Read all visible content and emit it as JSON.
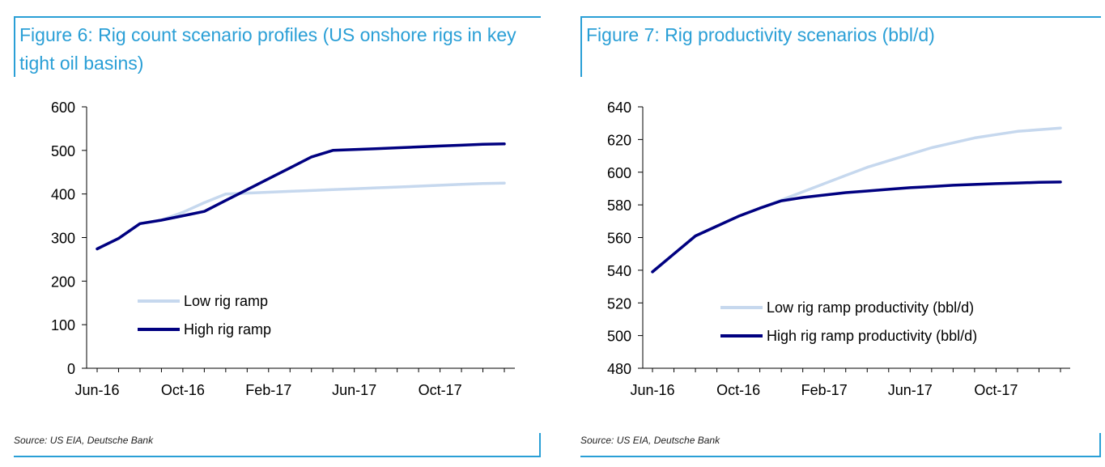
{
  "chart_data": [
    {
      "type": "line",
      "title": "Figure 6: Rig count scenario profiles (US onshore rigs in key tight oil basins)",
      "source": "Source: US EIA, Deutsche Bank",
      "xlabel": "",
      "ylabel": "",
      "ylim": [
        0,
        600
      ],
      "yticks": [
        "0",
        "100",
        "200",
        "300",
        "400",
        "500",
        "600"
      ],
      "x_tick_labels": [
        "Jun-16",
        "Oct-16",
        "Feb-17",
        "Jun-17",
        "Oct-17"
      ],
      "x_tick_months": [
        0,
        4,
        8,
        12,
        16
      ],
      "x_range": [
        0,
        19
      ],
      "legend": "lower-left",
      "series": [
        {
          "name": "Low rig ramp",
          "color": "#c6d8ee",
          "x": [
            0,
            1,
            2,
            3,
            4,
            5,
            6,
            7,
            8,
            9,
            10,
            11,
            12,
            13,
            14,
            15,
            16,
            17,
            18,
            19
          ],
          "values": [
            274,
            298,
            332,
            340,
            358,
            380,
            400,
            402,
            404,
            406,
            408,
            410,
            412,
            414,
            416,
            418,
            420,
            422,
            424,
            425
          ]
        },
        {
          "name": "High rig ramp",
          "color": "#000080",
          "x": [
            0,
            1,
            2,
            3,
            4,
            5,
            6,
            7,
            8,
            9,
            10,
            11,
            12,
            13,
            14,
            15,
            16,
            17,
            18,
            19
          ],
          "values": [
            274,
            298,
            332,
            340,
            350,
            360,
            385,
            410,
            435,
            460,
            485,
            500,
            502,
            504,
            506,
            508,
            510,
            512,
            514,
            515
          ]
        }
      ]
    },
    {
      "type": "line",
      "title": "Figure 7: Rig productivity scenarios (bbl/d)",
      "source": "Source: US EIA, Deutsche Bank",
      "xlabel": "",
      "ylabel": "",
      "ylim": [
        480,
        640
      ],
      "yticks": [
        "480",
        "500",
        "520",
        "540",
        "560",
        "580",
        "600",
        "620",
        "640"
      ],
      "x_tick_labels": [
        "Jun-16",
        "Oct-16",
        "Feb-17",
        "Jun-17",
        "Oct-17"
      ],
      "x_tick_months": [
        0,
        4,
        8,
        12,
        16
      ],
      "x_range": [
        0,
        19
      ],
      "legend": "lower-right",
      "series": [
        {
          "name": "Low rig ramp productivity (bbl/d)",
          "color": "#c6d8ee",
          "x": [
            0,
            1,
            2,
            3,
            4,
            5,
            6,
            7,
            8,
            9,
            10,
            11,
            12,
            13,
            14,
            15,
            16,
            17,
            18,
            19
          ],
          "values": [
            539,
            550,
            561,
            567,
            573,
            578,
            583,
            588,
            593,
            598,
            603,
            607,
            611,
            615,
            618,
            621,
            623,
            625,
            626,
            627
          ]
        },
        {
          "name": "High rig ramp productivity (bbl/d)",
          "color": "#000080",
          "x": [
            0,
            1,
            2,
            3,
            4,
            5,
            6,
            7,
            8,
            9,
            10,
            11,
            12,
            13,
            14,
            15,
            16,
            17,
            18,
            19
          ],
          "values": [
            539,
            550,
            561,
            567,
            573,
            578,
            582.5,
            584.5,
            586,
            587.5,
            588.5,
            589.5,
            590.5,
            591.2,
            592,
            592.5,
            593,
            593.4,
            593.8,
            594
          ]
        }
      ]
    }
  ]
}
